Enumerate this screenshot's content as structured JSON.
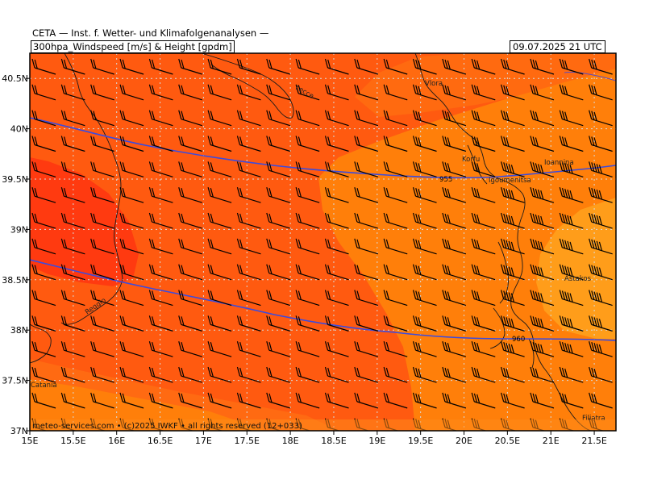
{
  "header": {
    "line1": "CETA — Inst. f. Wetter- und Klimafolgenanalysen —",
    "line2": "300hpa_Windspeed [m/s] & Height [gpdm]",
    "datetime": "09.07.2025 21 UTC"
  },
  "map": {
    "lon_range": [
      15,
      21.75
    ],
    "lat_range": [
      37,
      40.75
    ],
    "lon_ticks": [
      "15E",
      "15.5E",
      "16E",
      "16.5E",
      "17E",
      "17.5E",
      "18E",
      "18.5E",
      "19E",
      "19.5E",
      "20E",
      "20.5E",
      "21E",
      "21.5E"
    ],
    "lat_ticks": [
      "37N",
      "37.5N",
      "38N",
      "38.5N",
      "39N",
      "39.5N",
      "40N",
      "40.5N"
    ],
    "contours": [
      {
        "label": "955",
        "color": "#3a4be0"
      },
      {
        "label": "960",
        "color": "#3a4be0"
      }
    ],
    "places": [
      "Vlora",
      "Lecce",
      "Korfu",
      "Ioannina",
      "Igoumenitsa",
      "Astakos",
      "Reggio",
      "Catania",
      "Filiatra"
    ],
    "credit": "meteo-services.com • (c)2025 IWKF • all rights reserved (12+033)",
    "colors": {
      "light_orange": "#ff9d1a",
      "orange": "#ff7f0a",
      "dark_orange": "#ff5a10",
      "red": "#ff3a10",
      "contour": "#3a4be0",
      "barb": "#000000"
    }
  }
}
